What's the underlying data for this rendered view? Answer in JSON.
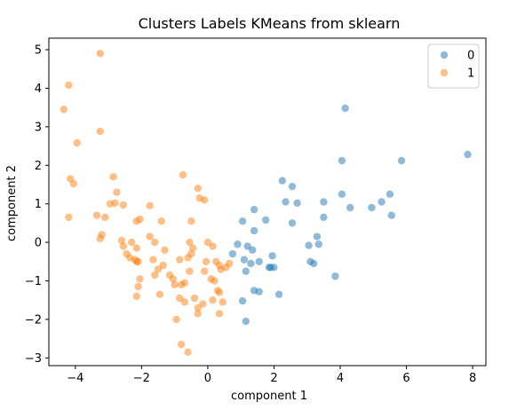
{
  "chart_data": {
    "type": "scatter",
    "title": "Clusters Labels KMeans from sklearn",
    "xlabel": "component 1",
    "ylabel": "component 2",
    "xlim": [
      -4.8,
      8.4
    ],
    "ylim": [
      -3.2,
      5.3
    ],
    "xticks": [
      -4,
      -2,
      0,
      2,
      4,
      6,
      8
    ],
    "yticks": [
      -3,
      -2,
      -1,
      0,
      1,
      2,
      3,
      4,
      5
    ],
    "grid": false,
    "legend_position": "top-right",
    "colors": {
      "0": "#1f77b4",
      "1": "#ff7f0e"
    },
    "series": [
      {
        "name": "0",
        "color": "#1f77b4",
        "points": [
          [
            7.85,
            2.28
          ],
          [
            5.85,
            2.12
          ],
          [
            4.15,
            3.48
          ],
          [
            4.05,
            2.12
          ],
          [
            5.5,
            1.25
          ],
          [
            5.55,
            0.7
          ],
          [
            5.25,
            1.05
          ],
          [
            4.95,
            0.9
          ],
          [
            4.05,
            1.25
          ],
          [
            4.3,
            0.9
          ],
          [
            3.5,
            1.05
          ],
          [
            3.5,
            0.65
          ],
          [
            3.3,
            0.15
          ],
          [
            3.35,
            -0.05
          ],
          [
            3.05,
            -0.08
          ],
          [
            3.1,
            -0.5
          ],
          [
            3.2,
            -0.55
          ],
          [
            3.85,
            -0.88
          ],
          [
            2.55,
            1.45
          ],
          [
            2.25,
            1.6
          ],
          [
            2.35,
            1.05
          ],
          [
            2.7,
            1.02
          ],
          [
            2.55,
            0.5
          ],
          [
            1.75,
            0.58
          ],
          [
            1.4,
            0.85
          ],
          [
            1.05,
            0.55
          ],
          [
            1.4,
            0.3
          ],
          [
            0.9,
            -0.05
          ],
          [
            1.2,
            -0.1
          ],
          [
            1.35,
            -0.2
          ],
          [
            0.75,
            -0.3
          ],
          [
            1.1,
            -0.45
          ],
          [
            1.3,
            -0.55
          ],
          [
            1.55,
            -0.5
          ],
          [
            1.15,
            -0.75
          ],
          [
            1.95,
            -0.35
          ],
          [
            1.9,
            -0.65
          ],
          [
            2.0,
            -0.65
          ],
          [
            1.85,
            -0.65
          ],
          [
            1.4,
            -1.25
          ],
          [
            1.55,
            -1.28
          ],
          [
            2.15,
            -1.35
          ],
          [
            1.05,
            -1.52
          ],
          [
            1.15,
            -2.05
          ]
        ]
      },
      {
        "name": "1",
        "color": "#ff7f0e",
        "points": [
          [
            -3.25,
            4.9
          ],
          [
            -4.2,
            4.08
          ],
          [
            -4.35,
            3.45
          ],
          [
            -3.95,
            2.58
          ],
          [
            -3.25,
            2.88
          ],
          [
            -4.15,
            1.65
          ],
          [
            -4.05,
            1.52
          ],
          [
            -4.2,
            0.65
          ],
          [
            -3.1,
            0.65
          ],
          [
            -3.35,
            0.7
          ],
          [
            -2.85,
            1.7
          ],
          [
            -2.75,
            1.3
          ],
          [
            -2.95,
            1.0
          ],
          [
            -2.8,
            1.02
          ],
          [
            -2.55,
            0.97
          ],
          [
            -2.15,
            0.55
          ],
          [
            -2.05,
            0.6
          ],
          [
            -1.75,
            0.95
          ],
          [
            -1.4,
            0.55
          ],
          [
            -3.2,
            0.2
          ],
          [
            -3.25,
            0.1
          ],
          [
            -2.6,
            0.05
          ],
          [
            -2.55,
            -0.1
          ],
          [
            -2.3,
            0.0
          ],
          [
            -2.15,
            -0.15
          ],
          [
            -2.45,
            -0.3
          ],
          [
            -2.35,
            -0.4
          ],
          [
            -2.2,
            -0.45
          ],
          [
            -2.15,
            -0.5
          ],
          [
            -2.1,
            -0.5
          ],
          [
            -1.75,
            0.15
          ],
          [
            -1.6,
            0.0
          ],
          [
            -1.3,
            -0.2
          ],
          [
            -1.65,
            -0.45
          ],
          [
            -1.5,
            -0.7
          ],
          [
            -1.35,
            -0.6
          ],
          [
            -1.15,
            -0.85
          ],
          [
            -1.05,
            -0.95
          ],
          [
            -2.05,
            -0.95
          ],
          [
            -2.1,
            -1.15
          ],
          [
            -2.15,
            -1.4
          ],
          [
            -1.6,
            -0.85
          ],
          [
            -1.45,
            -1.35
          ],
          [
            -1.0,
            -1.1
          ],
          [
            -0.85,
            -0.45
          ],
          [
            -0.6,
            -0.4
          ],
          [
            -0.55,
            -0.75
          ],
          [
            -0.8,
            -1.1
          ],
          [
            -0.7,
            -1.05
          ],
          [
            -0.85,
            -1.45
          ],
          [
            -0.7,
            -1.55
          ],
          [
            -0.4,
            -1.45
          ],
          [
            -0.95,
            -2.0
          ],
          [
            -0.8,
            -2.65
          ],
          [
            -0.6,
            -2.85
          ],
          [
            -0.3,
            -1.85
          ],
          [
            -0.3,
            -1.7
          ],
          [
            -0.15,
            -1.6
          ],
          [
            -0.05,
            -0.5
          ],
          [
            -0.1,
            -0.75
          ],
          [
            0.0,
            0.0
          ],
          [
            0.15,
            -0.1
          ],
          [
            0.25,
            -0.5
          ],
          [
            0.35,
            -0.6
          ],
          [
            0.4,
            -0.7
          ],
          [
            0.55,
            -0.65
          ],
          [
            0.65,
            -0.55
          ],
          [
            0.1,
            -0.95
          ],
          [
            0.2,
            -1.0
          ],
          [
            0.3,
            -1.25
          ],
          [
            0.35,
            -1.3
          ],
          [
            0.15,
            -1.5
          ],
          [
            0.45,
            -1.55
          ],
          [
            0.35,
            -1.85
          ],
          [
            -0.5,
            0.55
          ],
          [
            -0.55,
            0.0
          ],
          [
            -0.45,
            -0.15
          ],
          [
            -0.5,
            -0.3
          ],
          [
            -0.75,
            1.75
          ],
          [
            -0.3,
            1.4
          ],
          [
            -0.25,
            1.15
          ],
          [
            -0.1,
            1.1
          ]
        ]
      }
    ]
  }
}
